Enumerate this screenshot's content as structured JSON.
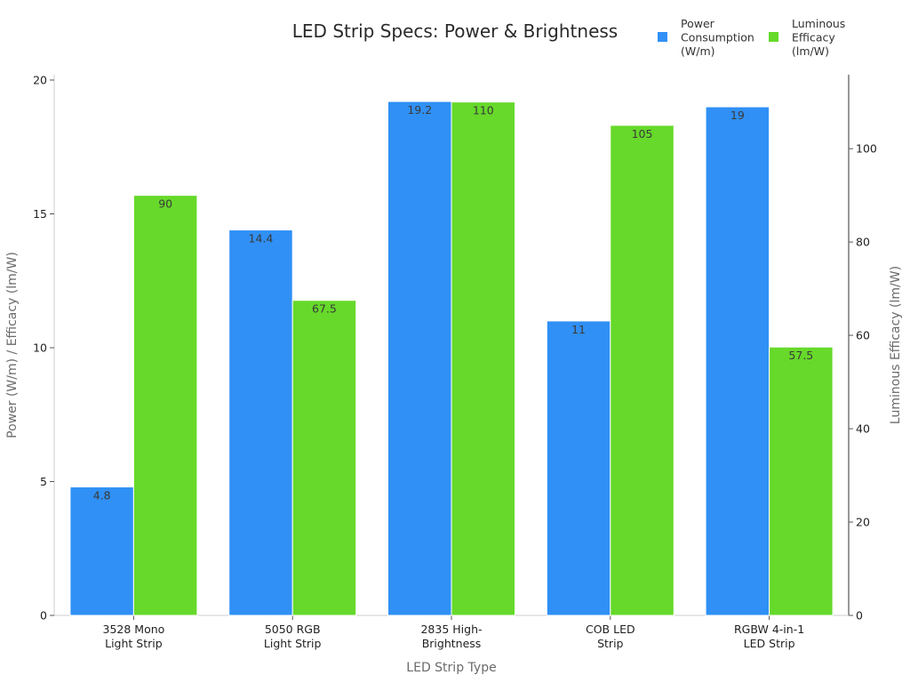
{
  "chart_data": {
    "type": "bar",
    "title": "LED Strip Specs: Power & Brightness",
    "xlabel": "LED Strip Type",
    "ylabel_left": "Power (W/m) / Efficacy (lm/W)",
    "ylabel_right": "Luminous Efficacy (lm/W)",
    "categories": [
      [
        "3528 Mono",
        "Light Strip"
      ],
      [
        "5050 RGB",
        "Light Strip"
      ],
      [
        "2835 High-",
        "Brightness"
      ],
      [
        "COB LED",
        "Strip"
      ],
      [
        "RGBW 4-in-1",
        "LED Strip"
      ]
    ],
    "series": [
      {
        "name": [
          "Power",
          "Consumption",
          "(W/m)"
        ],
        "axis": "left",
        "color": "#3090f5",
        "values": [
          4.8,
          14.4,
          19.2,
          11,
          19
        ],
        "labels": [
          "4.8",
          "14.4",
          "19.2",
          "11",
          "19"
        ]
      },
      {
        "name": [
          "Luminous",
          "Efficacy",
          "(lm/W)"
        ],
        "axis": "right",
        "color": "#66d92a",
        "values": [
          90,
          67.5,
          110,
          105,
          57.5
        ],
        "labels": [
          "90",
          "67.5",
          "110",
          "105",
          "57.5"
        ]
      }
    ],
    "ylim_left": [
      0,
      20
    ],
    "yticks_left": [
      0,
      5,
      10,
      15,
      20
    ],
    "ylim_right": [
      0,
      114.7
    ],
    "yticks_right": [
      0,
      20,
      40,
      60,
      80,
      100
    ],
    "grid": false,
    "legend_position": "top-right"
  }
}
